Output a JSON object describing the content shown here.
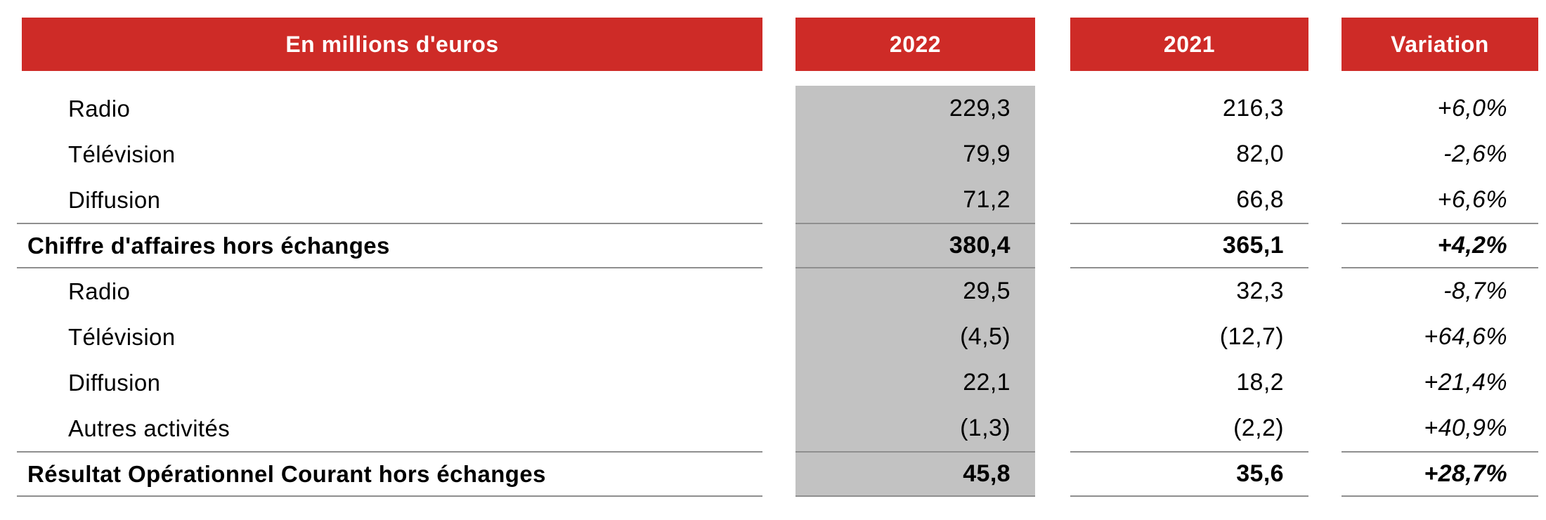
{
  "table": {
    "unit_header": "En millions d'euros",
    "columns": {
      "label": "En millions d'euros",
      "year_current": "2022",
      "year_prior": "2021",
      "variation": "Variation"
    },
    "rows": [
      {
        "label": "Radio",
        "v2022": "229,3",
        "v2021": "216,3",
        "variation": "+6,0%",
        "style": "indent"
      },
      {
        "label": "Télévision",
        "v2022": "79,9",
        "v2021": "82,0",
        "variation": "-2,6%",
        "style": "indent"
      },
      {
        "label": "Diffusion",
        "v2022": "71,2",
        "v2021": "66,8",
        "variation": "+6,6%",
        "style": "indent"
      },
      {
        "label": "Chiffre d'affaires hors échanges",
        "v2022": "380,4",
        "v2021": "365,1",
        "variation": "+4,2%",
        "style": "total"
      },
      {
        "label": "Radio",
        "v2022": "29,5",
        "v2021": "32,3",
        "variation": "-8,7%",
        "style": "indent"
      },
      {
        "label": "Télévision",
        "v2022": "(4,5)",
        "v2021": "(12,7)",
        "variation": "+64,6%",
        "style": "indent"
      },
      {
        "label": "Diffusion",
        "v2022": "22,1",
        "v2021": "18,2",
        "variation": "+21,4%",
        "style": "indent"
      },
      {
        "label": "Autres activités",
        "v2022": "(1,3)",
        "v2021": "(2,2)",
        "variation": "+40,9%",
        "style": "indent"
      },
      {
        "label": "Résultat Opérationnel Courant hors échanges",
        "v2022": "45,8",
        "v2021": "35,6",
        "variation": "+28,7%",
        "style": "total"
      }
    ]
  },
  "colors": {
    "header_bg": "#ce2b27",
    "header_text": "#ffffff",
    "col_2022_bg": "#c2c2c2",
    "rule": "#8f8f8f",
    "text": "#000000"
  }
}
